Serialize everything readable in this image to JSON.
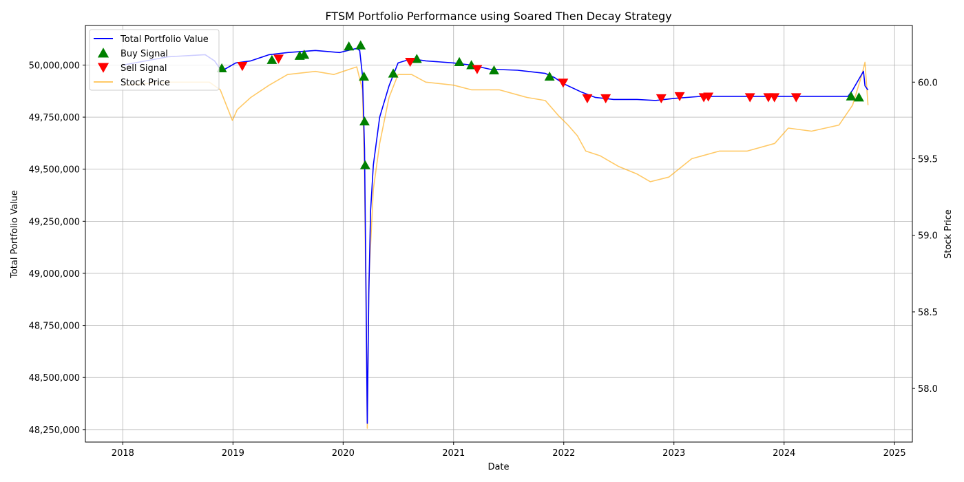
{
  "chart_data": {
    "type": "line",
    "title": "FTSM Portfolio Performance using Soared Then Decay Strategy",
    "xlabel": "Date",
    "ylabel": "Total Portfolio Value",
    "y2label": "Stock Price",
    "grid": true,
    "legend_position": "top-left",
    "x_scale": "time",
    "xlim": [
      "2017-08-30",
      "2025-03-01"
    ],
    "ylim": [
      48190000,
      50190000
    ],
    "y2lim": [
      57.65,
      60.37
    ],
    "x_tick_labels": [
      "2018",
      "2019",
      "2020",
      "2021",
      "2022",
      "2023",
      "2024",
      "2025"
    ],
    "y_tick_labels": [
      "48,250,000",
      "48,500,000",
      "48,750,000",
      "49,000,000",
      "49,250,000",
      "49,500,000",
      "49,750,000",
      "50,000,000"
    ],
    "y2_tick_labels": [
      "58.0",
      "58.5",
      "59.0",
      "59.5",
      "60.0"
    ],
    "colors": {
      "portfolio": "#0000ff",
      "stock": "#ffa500",
      "buy": "#008000",
      "sell": "#ff0000",
      "grid": "#b0b0b0"
    },
    "series": [
      {
        "name": "Total Portfolio Value",
        "axis": "left",
        "color": "#0000ff",
        "points": [
          [
            "2018-01-01",
            50000000
          ],
          [
            "2018-06-01",
            50040000
          ],
          [
            "2018-10-01",
            50050000
          ],
          [
            "2018-11-01",
            50020000
          ],
          [
            "2018-11-25",
            49970000
          ],
          [
            "2018-12-05",
            49980000
          ],
          [
            "2019-01-10",
            50010000
          ],
          [
            "2019-03-01",
            50020000
          ],
          [
            "2019-05-01",
            50050000
          ],
          [
            "2019-07-01",
            50060000
          ],
          [
            "2019-10-01",
            50070000
          ],
          [
            "2019-12-20",
            50060000
          ],
          [
            "2020-02-15",
            50080000
          ],
          [
            "2020-02-25",
            50070000
          ],
          [
            "2020-03-05",
            49950000
          ],
          [
            "2020-03-12",
            49600000
          ],
          [
            "2020-03-17",
            48900000
          ],
          [
            "2020-03-21",
            48280000
          ],
          [
            "2020-03-26",
            48900000
          ],
          [
            "2020-04-01",
            49300000
          ],
          [
            "2020-04-10",
            49520000
          ],
          [
            "2020-05-01",
            49750000
          ],
          [
            "2020-06-01",
            49900000
          ],
          [
            "2020-07-01",
            50010000
          ],
          [
            "2020-08-15",
            50030000
          ],
          [
            "2020-10-01",
            50020000
          ],
          [
            "2021-01-01",
            50010000
          ],
          [
            "2021-03-01",
            50000000
          ],
          [
            "2021-05-01",
            49980000
          ],
          [
            "2021-08-01",
            49975000
          ],
          [
            "2021-11-01",
            49960000
          ],
          [
            "2021-12-01",
            49940000
          ],
          [
            "2022-01-01",
            49910000
          ],
          [
            "2022-03-01",
            49870000
          ],
          [
            "2022-04-15",
            49845000
          ],
          [
            "2022-06-15",
            49835000
          ],
          [
            "2022-09-01",
            49835000
          ],
          [
            "2022-11-01",
            49830000
          ],
          [
            "2023-01-01",
            49840000
          ],
          [
            "2023-04-01",
            49850000
          ],
          [
            "2024-07-31",
            49850000
          ],
          [
            "2024-08-15",
            49880000
          ],
          [
            "2024-09-20",
            49970000
          ],
          [
            "2024-09-25",
            49900000
          ],
          [
            "2024-10-05",
            49880000
          ]
        ]
      },
      {
        "name": "Stock Price",
        "axis": "right",
        "color": "#ffa500",
        "points": [
          [
            "2018-01-01",
            59.98
          ],
          [
            "2018-06-01",
            60.0
          ],
          [
            "2018-10-15",
            60.0
          ],
          [
            "2018-11-20",
            59.95
          ],
          [
            "2018-12-30",
            59.75
          ],
          [
            "2019-01-15",
            59.82
          ],
          [
            "2019-03-01",
            59.9
          ],
          [
            "2019-05-01",
            59.98
          ],
          [
            "2019-07-01",
            60.05
          ],
          [
            "2019-10-01",
            60.07
          ],
          [
            "2019-12-01",
            60.05
          ],
          [
            "2020-02-15",
            60.1
          ],
          [
            "2020-03-05",
            59.95
          ],
          [
            "2020-03-12",
            59.4
          ],
          [
            "2020-03-17",
            58.5
          ],
          [
            "2020-03-21",
            57.74
          ],
          [
            "2020-03-26",
            58.7
          ],
          [
            "2020-04-10",
            59.3
          ],
          [
            "2020-05-01",
            59.6
          ],
          [
            "2020-06-01",
            59.9
          ],
          [
            "2020-07-01",
            60.05
          ],
          [
            "2020-08-15",
            60.05
          ],
          [
            "2020-10-01",
            60.0
          ],
          [
            "2021-01-01",
            59.98
          ],
          [
            "2021-03-01",
            59.95
          ],
          [
            "2021-06-01",
            59.95
          ],
          [
            "2021-09-01",
            59.9
          ],
          [
            "2021-11-01",
            59.88
          ],
          [
            "2021-12-15",
            59.78
          ],
          [
            "2022-01-15",
            59.72
          ],
          [
            "2022-02-15",
            59.65
          ],
          [
            "2022-03-15",
            59.55
          ],
          [
            "2022-05-01",
            59.52
          ],
          [
            "2022-07-01",
            59.45
          ],
          [
            "2022-09-01",
            59.4
          ],
          [
            "2022-10-15",
            59.35
          ],
          [
            "2022-12-15",
            59.38
          ],
          [
            "2023-03-01",
            59.5
          ],
          [
            "2023-06-01",
            59.55
          ],
          [
            "2023-09-01",
            59.55
          ],
          [
            "2023-12-01",
            59.6
          ],
          [
            "2024-01-15",
            59.7
          ],
          [
            "2024-04-01",
            59.68
          ],
          [
            "2024-07-01",
            59.72
          ],
          [
            "2024-08-15",
            59.85
          ],
          [
            "2024-09-15",
            60.05
          ],
          [
            "2024-09-25",
            60.13
          ],
          [
            "2024-10-05",
            59.85
          ]
        ]
      }
    ],
    "markers": [
      {
        "name": "Buy Signal",
        "shape": "triangle-up",
        "color": "#008000",
        "points": [
          [
            "2018-11-25",
            49985000
          ],
          [
            "2019-05-10",
            50025000
          ],
          [
            "2019-08-10",
            50045000
          ],
          [
            "2019-08-25",
            50050000
          ],
          [
            "2020-01-20",
            50090000
          ],
          [
            "2020-02-28",
            50095000
          ],
          [
            "2020-03-10",
            49945000
          ],
          [
            "2020-03-12",
            49730000
          ],
          [
            "2020-03-14",
            49520000
          ],
          [
            "2020-06-15",
            49960000
          ],
          [
            "2020-09-01",
            50030000
          ],
          [
            "2021-01-20",
            50015000
          ],
          [
            "2021-03-01",
            50000000
          ],
          [
            "2021-05-15",
            49975000
          ],
          [
            "2021-11-15",
            49945000
          ],
          [
            "2024-08-10",
            49850000
          ],
          [
            "2024-09-05",
            49845000
          ]
        ]
      },
      {
        "name": "Sell Signal",
        "shape": "triangle-down",
        "color": "#ff0000",
        "points": [
          [
            "2019-02-01",
            49995000
          ],
          [
            "2019-06-01",
            50030000
          ],
          [
            "2020-08-10",
            50015000
          ],
          [
            "2021-03-20",
            49980000
          ],
          [
            "2021-12-30",
            49915000
          ],
          [
            "2022-03-20",
            49840000
          ],
          [
            "2022-05-20",
            49840000
          ],
          [
            "2022-11-20",
            49840000
          ],
          [
            "2023-01-20",
            49850000
          ],
          [
            "2023-04-10",
            49845000
          ],
          [
            "2023-04-25",
            49848000
          ],
          [
            "2023-09-10",
            49845000
          ],
          [
            "2023-11-10",
            49845000
          ],
          [
            "2023-11-30",
            49845000
          ],
          [
            "2024-02-10",
            49845000
          ]
        ]
      }
    ]
  }
}
